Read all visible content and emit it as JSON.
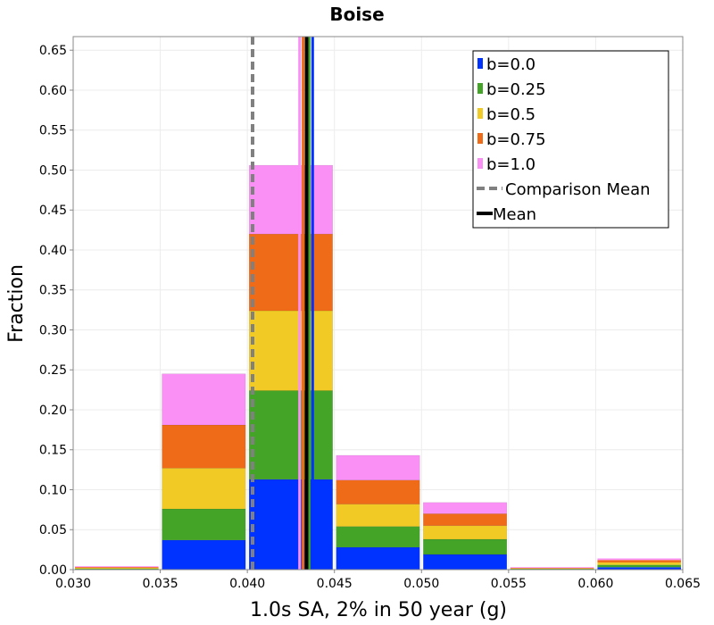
{
  "chart_data": {
    "type": "bar",
    "title": "Boise",
    "xlabel": "1.0s SA, 2% in 50 year (g)",
    "ylabel": "Fraction",
    "xlim": [
      0.03,
      0.065
    ],
    "ylim": [
      0.0,
      0.667
    ],
    "x_ticks": [
      "0.030",
      "0.035",
      "0.040",
      "0.045",
      "0.050",
      "0.055",
      "0.060",
      "0.065"
    ],
    "y_ticks": [
      "0.00",
      "0.05",
      "0.10",
      "0.15",
      "0.20",
      "0.25",
      "0.30",
      "0.35",
      "0.40",
      "0.45",
      "0.50",
      "0.55",
      "0.60",
      "0.65"
    ],
    "grid": true,
    "legend_position": "top-right",
    "bin_width": 0.005,
    "bins": [
      0.0325,
      0.0375,
      0.0425,
      0.0475,
      0.0525,
      0.0575,
      0.0625
    ],
    "stacked": true,
    "series": [
      {
        "name": "b=0.0",
        "color": "#0033ff",
        "values": [
          0.0005,
          0.037,
          0.113,
          0.028,
          0.019,
          0.0005,
          0.003
        ]
      },
      {
        "name": "b=0.25",
        "color": "#44a428",
        "values": [
          0.0008,
          0.039,
          0.111,
          0.026,
          0.019,
          0.0005,
          0.003
        ]
      },
      {
        "name": "b=0.5",
        "color": "#f2ca26",
        "values": [
          0.0009,
          0.051,
          0.1,
          0.028,
          0.017,
          0.0005,
          0.003
        ]
      },
      {
        "name": "b=0.75",
        "color": "#f06b18",
        "values": [
          0.0009,
          0.054,
          0.096,
          0.03,
          0.015,
          0.0005,
          0.003
        ]
      },
      {
        "name": "b=1.0",
        "color": "#fa8ff5",
        "values": [
          0.0009,
          0.064,
          0.086,
          0.031,
          0.014,
          0.0005,
          0.002
        ]
      }
    ],
    "mean_lines": [
      {
        "color": "#fa8ff5",
        "x": 0.043
      },
      {
        "color": "#f06b18",
        "x": 0.0432
      },
      {
        "color": "#f2ca26",
        "x": 0.0434
      },
      {
        "color": "#44a428",
        "x": 0.04355
      },
      {
        "color": "#0033ff",
        "x": 0.04375
      }
    ],
    "comparison_mean": {
      "name": "Comparison Mean",
      "x": 0.0403,
      "color": "#808080"
    },
    "mean": {
      "name": "Mean",
      "x": 0.0434,
      "color": "#000000"
    }
  }
}
